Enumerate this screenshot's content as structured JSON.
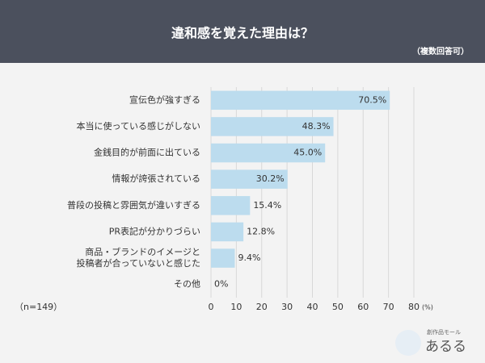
{
  "chart_data": {
    "type": "barh",
    "title": "違和感を覚えた理由は？",
    "subtitle": "（複数回答可）",
    "categories": [
      "宣伝色が強すぎる",
      "本当に使っている感じがしない",
      "金銭目的が前面に出ている",
      "情報が誇張されている",
      "普段の投稿と雰囲気が違いすぎる",
      "PR表記が分かりづらい",
      "商品・ブランドのイメージと\n投稿者が合っていないと感じた",
      "その他"
    ],
    "values": [
      70.5,
      48.3,
      45.0,
      30.2,
      15.4,
      12.8,
      9.4,
      0
    ],
    "value_labels": [
      "70.5%",
      "48.3%",
      "45.0%",
      "30.2%",
      "15.4%",
      "12.8%",
      "9.4%",
      "0%"
    ],
    "color": "#bcdcee",
    "xlim": [
      0,
      80
    ],
    "xticks": [
      0,
      10,
      20,
      30,
      40,
      50,
      60,
      70,
      80
    ],
    "x_label": "(%)",
    "note": "（n=149）",
    "grid": true,
    "logo": {
      "tagline": "創作品モール",
      "name": "あるる"
    }
  }
}
